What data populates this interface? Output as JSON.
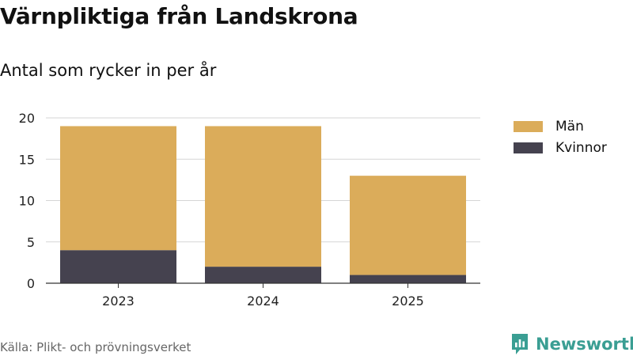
{
  "header": {
    "title": "Värnpliktiga från Landskrona",
    "subtitle": "Antal som rycker in per år"
  },
  "footer": {
    "source": "Källa: Plikt- och prövningsverket",
    "brand": "Newsworthy",
    "brand_icon": "newsworthy-logo-icon",
    "brand_color": "#3a9e93"
  },
  "chart_data": {
    "type": "bar",
    "stacked": true,
    "title": "Värnpliktiga från Landskrona",
    "subtitle": "Antal som rycker in per år",
    "categories": [
      "2023",
      "2024",
      "2025"
    ],
    "series": [
      {
        "name": "Kvinnor",
        "color": "#45424f",
        "values": [
          4,
          2,
          1
        ]
      },
      {
        "name": "Män",
        "color": "#dbac5a",
        "values": [
          15,
          17,
          12
        ]
      }
    ],
    "legend_order": [
      "Män",
      "Kvinnor"
    ],
    "yticks": [
      0,
      5,
      10,
      15,
      20
    ],
    "ylim": [
      0,
      20
    ],
    "xlabel": "",
    "ylabel": "",
    "grid": true,
    "legend_position": "right"
  }
}
